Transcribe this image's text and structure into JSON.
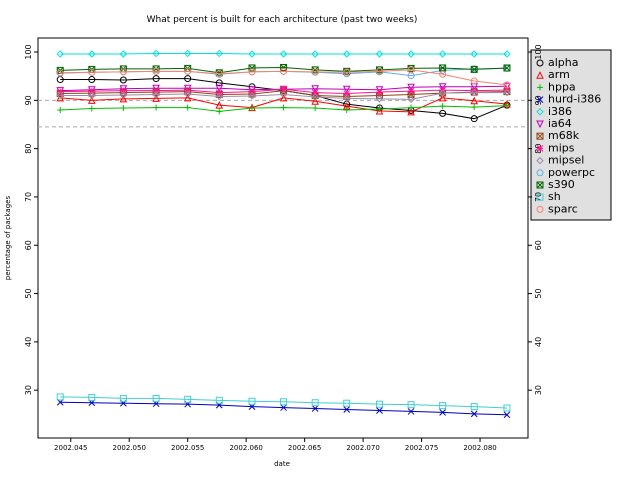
{
  "chart_data": {
    "type": "line",
    "title": "What percent is built for each architecture (past two weeks)",
    "xlabel": "date",
    "ylabel": "percentage of packages",
    "x": [
      2002.0441,
      2002.0468,
      2002.0495,
      2002.0523,
      2002.055,
      2002.0577,
      2002.0605,
      2002.0632,
      2002.0659,
      2002.0686,
      2002.0714,
      2002.0741,
      2002.0768,
      2002.0795,
      2002.0823
    ],
    "xlim": [
      2002.0422,
      2002.0841
    ],
    "xticks": [
      2002.045,
      {
        "value": 2002.05,
        "label": "2002.050"
      },
      2002.055,
      {
        "value": 2002.06,
        "label": "2002.060"
      },
      2002.065,
      {
        "value": 2002.07,
        "label": "2002.070"
      },
      2002.075,
      {
        "value": 2002.08,
        "label": "2002.080"
      }
    ],
    "ylim": [
      20.1,
      102.9
    ],
    "yticks": [
      30,
      40,
      50,
      60,
      70,
      80,
      90,
      100
    ],
    "hlines": [
      84.5,
      90
    ],
    "legend": "right",
    "series": [
      {
        "name": "alpha",
        "color": "#000000",
        "marker": "circle",
        "values": [
          94.3,
          94.3,
          94.2,
          94.5,
          94.5,
          93.6,
          92.8,
          92.0,
          91.0,
          89.2,
          88.4,
          87.9,
          87.3,
          86.2,
          89.0
        ]
      },
      {
        "name": "arm",
        "color": "#ff0000",
        "marker": "triangle",
        "values": [
          90.5,
          90.0,
          90.3,
          90.4,
          90.5,
          89.0,
          88.5,
          90.5,
          89.8,
          88.8,
          87.8,
          87.6,
          90.5,
          89.9,
          89.2
        ]
      },
      {
        "name": "hppa",
        "color": "#00c000",
        "marker": "plus",
        "values": [
          88.0,
          88.3,
          88.4,
          88.5,
          88.5,
          87.7,
          88.4,
          88.5,
          88.4,
          88.0,
          88.2,
          88.5,
          88.8,
          88.6,
          88.9
        ]
      },
      {
        "name": "hurd-i386",
        "color": "#0000c0",
        "marker": "cross",
        "values": [
          27.5,
          27.4,
          27.3,
          27.2,
          27.1,
          26.9,
          26.6,
          26.4,
          26.2,
          26.0,
          25.8,
          25.6,
          25.4,
          25.1,
          24.9
        ]
      },
      {
        "name": "i386",
        "color": "#00e0e0",
        "marker": "diamond",
        "values": [
          99.6,
          99.6,
          99.6,
          99.7,
          99.7,
          99.7,
          99.6,
          99.6,
          99.6,
          99.6,
          99.6,
          99.6,
          99.6,
          99.6,
          99.6
        ]
      },
      {
        "name": "ia64",
        "color": "#c000c0",
        "marker": "triangle-down",
        "values": [
          92.0,
          92.2,
          92.4,
          92.5,
          92.5,
          92.5,
          92.2,
          92.3,
          92.4,
          92.3,
          92.2,
          92.7,
          92.8,
          92.8,
          92.9
        ]
      },
      {
        "name": "m68k",
        "color": "#8b4513",
        "marker": "square-cross",
        "values": [
          91.4,
          91.5,
          91.6,
          91.7,
          91.8,
          91.2,
          91.3,
          92.0,
          91.0,
          90.8,
          91.0,
          91.2,
          91.5,
          91.7,
          91.8
        ]
      },
      {
        "name": "mips",
        "color": "#ff1493",
        "marker": "asterisk",
        "values": [
          91.8,
          91.9,
          92.0,
          92.0,
          92.1,
          91.6,
          91.8,
          92.3,
          91.6,
          91.4,
          91.7,
          91.9,
          92.1,
          92.0,
          92.1
        ]
      },
      {
        "name": "mipsel",
        "color": "#9b8aa8",
        "marker": "diamond",
        "values": [
          91.0,
          91.0,
          91.1,
          91.2,
          91.3,
          90.8,
          90.9,
          91.2,
          90.7,
          90.4,
          90.3,
          90.2,
          91.5,
          91.6,
          91.6
        ]
      },
      {
        "name": "powerpc",
        "color": "#5cacee",
        "marker": "circle",
        "values": [
          95.7,
          95.8,
          95.9,
          96.0,
          96.0,
          95.4,
          95.9,
          96.0,
          95.8,
          95.5,
          95.9,
          95.1,
          96.2,
          96.5,
          96.6
        ]
      },
      {
        "name": "s390",
        "color": "#006400",
        "marker": "square-cross",
        "values": [
          96.2,
          96.4,
          96.5,
          96.5,
          96.6,
          95.7,
          96.7,
          96.8,
          96.3,
          96.0,
          96.3,
          96.6,
          96.7,
          96.4,
          96.7
        ]
      },
      {
        "name": "sh",
        "color": "#40d0d0",
        "marker": "square",
        "values": [
          28.6,
          28.5,
          28.3,
          28.3,
          28.1,
          27.9,
          27.7,
          27.6,
          27.4,
          27.3,
          27.1,
          27.0,
          26.8,
          26.6,
          26.3
        ]
      },
      {
        "name": "sparc",
        "color": "#fa8072",
        "marker": "circle",
        "values": [
          95.6,
          95.8,
          95.9,
          96.0,
          96.0,
          95.5,
          95.9,
          96.0,
          95.9,
          95.8,
          96.0,
          96.3,
          95.4,
          94.0,
          93.2
        ]
      }
    ]
  }
}
